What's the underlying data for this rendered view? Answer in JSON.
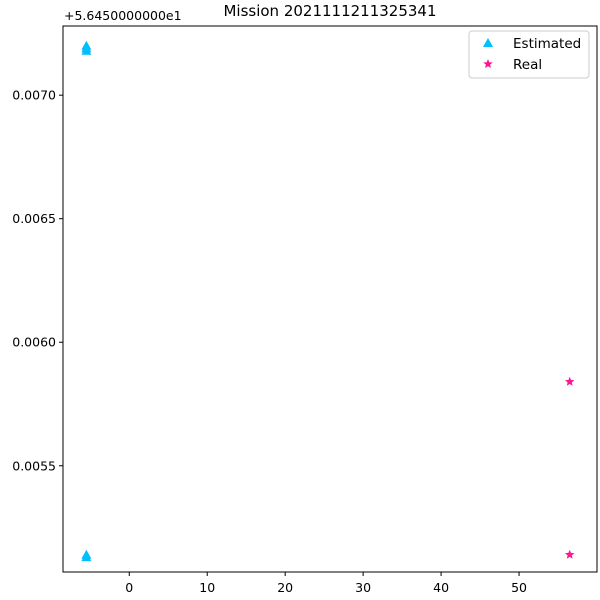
{
  "chart_data": {
    "type": "scatter",
    "title": "Mission 2021111211325341",
    "xlabel": "",
    "ylabel": "",
    "y_offset_label": "+5.6450000000e1",
    "xlim": [
      -8.5,
      60
    ],
    "ylim": [
      0.00507,
      0.00728
    ],
    "x_ticks": [
      0,
      10,
      20,
      30,
      40,
      50
    ],
    "x_tick_labels": [
      "0",
      "10",
      "20",
      "30",
      "40",
      "50"
    ],
    "y_ticks": [
      0.0055,
      0.006,
      0.0065,
      0.007
    ],
    "y_tick_labels": [
      "0.0055",
      "0.0060",
      "0.0065",
      "0.0070"
    ],
    "grid": false,
    "legend": "top-right",
    "series": [
      {
        "name": "Estimated",
        "marker": "triangle",
        "color": "#00bfff",
        "points": [
          {
            "x": -5.5,
            "y": 0.00719
          },
          {
            "x": -5.5,
            "y": 0.0072
          },
          {
            "x": -5.5,
            "y": 0.00718
          },
          {
            "x": -5.5,
            "y": 0.00514
          },
          {
            "x": -5.5,
            "y": 0.00513
          }
        ]
      },
      {
        "name": "Real",
        "marker": "star",
        "color": "#ff1493",
        "points": [
          {
            "x": 56.5,
            "y": 0.00584
          },
          {
            "x": 56.5,
            "y": 0.00514
          }
        ]
      }
    ]
  }
}
